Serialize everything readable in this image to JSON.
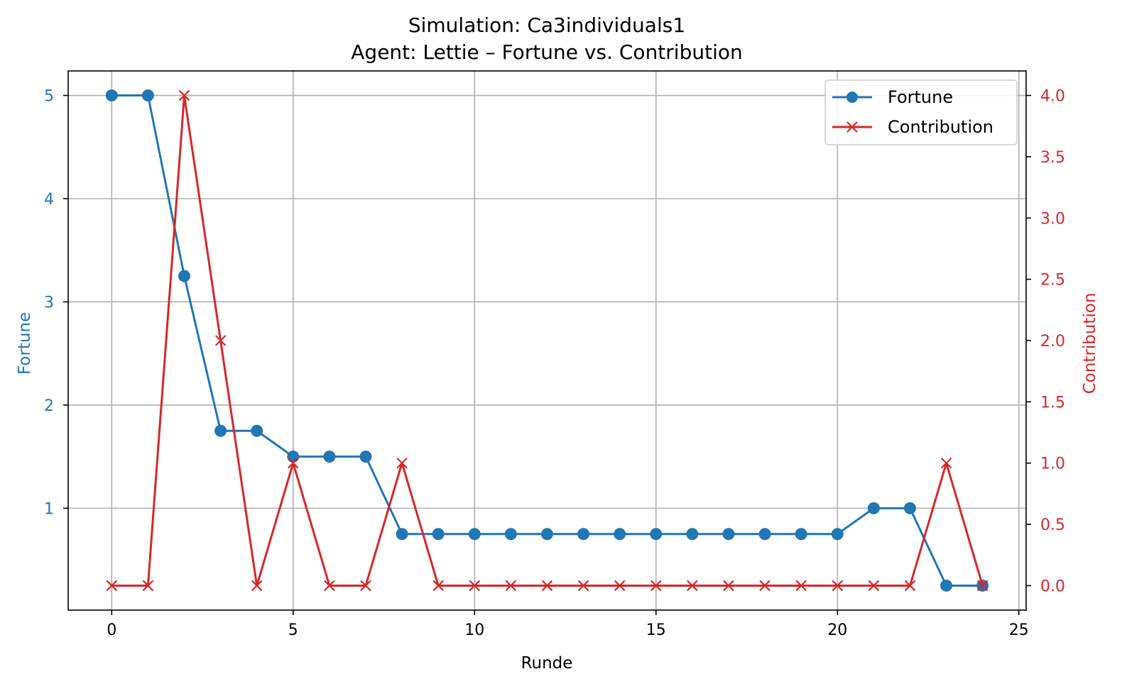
{
  "chart_data": {
    "type": "line",
    "title": "Simulation: Ca3individuals1",
    "subtitle": "Agent: Lettie – Fortune vs. Contribution",
    "xlabel": "Runde",
    "ylabel_left": "Fortune",
    "ylabel_right": "Contribution",
    "x": [
      0,
      1,
      2,
      3,
      4,
      5,
      6,
      7,
      8,
      9,
      10,
      11,
      12,
      13,
      14,
      15,
      16,
      17,
      18,
      19,
      20,
      21,
      22,
      23,
      24
    ],
    "xlim": [
      -1.2,
      25.2
    ],
    "ylim_left": [
      0.0125,
      5.2375
    ],
    "ylim_right": [
      -0.2,
      4.2
    ],
    "xticks": [
      0,
      5,
      10,
      15,
      20,
      25
    ],
    "yticks_left": [
      1,
      2,
      3,
      4,
      5
    ],
    "yticks_right": [
      0.0,
      0.5,
      1.0,
      1.5,
      2.0,
      2.5,
      3.0,
      3.5,
      4.0
    ],
    "grid": true,
    "legend_position": "top-right",
    "series": [
      {
        "name": "Fortune",
        "axis": "left",
        "color": "#1f77b4",
        "marker": "circle",
        "values": [
          5,
          5,
          3.25,
          1.75,
          1.75,
          1.5,
          1.5,
          1.5,
          0.75,
          0.75,
          0.75,
          0.75,
          0.75,
          0.75,
          0.75,
          0.75,
          0.75,
          0.75,
          0.75,
          0.75,
          0.75,
          1.0,
          1.0,
          0.25,
          0.25
        ]
      },
      {
        "name": "Contribution",
        "axis": "right",
        "color": "#d62728",
        "marker": "x",
        "values": [
          0,
          0,
          4,
          2,
          0,
          1,
          0,
          0,
          1,
          0,
          0,
          0,
          0,
          0,
          0,
          0,
          0,
          0,
          0,
          0,
          0,
          0,
          0,
          1,
          0
        ]
      }
    ]
  }
}
